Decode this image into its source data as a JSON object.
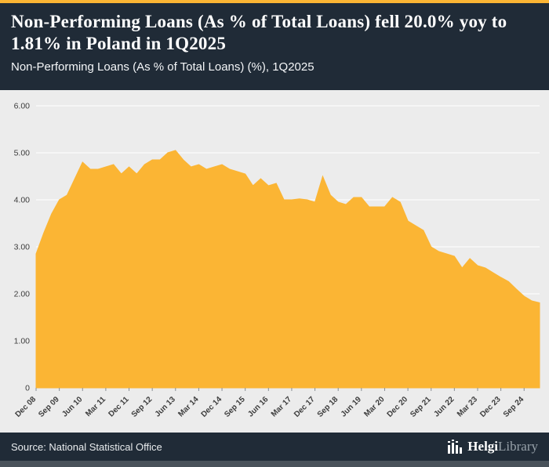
{
  "header": {
    "title": "Non-Performing Loans (As % of Total Loans) fell 20.0% yoy to 1.81% in Poland in 1Q2025",
    "subtitle": "Non-Performing Loans (As % of Total Loans) (%), 1Q2025"
  },
  "footer": {
    "source": "Source: National Statistical Office",
    "logo_primary": "Helgi",
    "logo_secondary": "Library"
  },
  "colors": {
    "accent": "#FBB534",
    "header_bg": "#202B37",
    "chart_bg": "#ECECEC",
    "gridline": "#FFFFFF",
    "axis_text": "#3d3d3d"
  },
  "chart_data": {
    "type": "area",
    "title": "Non-Performing Loans (As % of Total Loans) fell 20.0% yoy to 1.81% in Poland in 1Q2025",
    "subtitle": "Non-Performing Loans (As % of Total Loans) (%), 1Q2025",
    "unit": "%",
    "ylim": [
      0,
      6
    ],
    "ytick_labels": [
      "6.00",
      "5.00",
      "4.00",
      "3.00",
      "2.00",
      "1.00",
      "0"
    ],
    "grid": true,
    "legend": "none",
    "x_tick_every": 3,
    "x_tick_labels": [
      "Dec 08",
      "Sep 09",
      "Jun 10",
      "Mar 11",
      "Dec 11",
      "Sep 12",
      "Jun 13",
      "Mar 14",
      "Dec 14",
      "Sep 15",
      "Jun 16",
      "Mar 17",
      "Dec 17",
      "Sep 18",
      "Jun 19",
      "Mar 20",
      "Dec 20",
      "Sep 21",
      "Jun 22",
      "Mar 23",
      "Dec 23",
      "Sep 24"
    ],
    "categories": [
      "Dec 08",
      "Mar 09",
      "Jun 09",
      "Sep 09",
      "Dec 09",
      "Mar 10",
      "Jun 10",
      "Sep 10",
      "Dec 10",
      "Mar 11",
      "Jun 11",
      "Sep 11",
      "Dec 11",
      "Mar 12",
      "Jun 12",
      "Sep 12",
      "Dec 12",
      "Mar 13",
      "Jun 13",
      "Sep 13",
      "Dec 13",
      "Mar 14",
      "Jun 14",
      "Sep 14",
      "Dec 14",
      "Mar 15",
      "Jun 15",
      "Sep 15",
      "Dec 15",
      "Mar 16",
      "Jun 16",
      "Sep 16",
      "Dec 16",
      "Mar 17",
      "Jun 17",
      "Sep 17",
      "Dec 17",
      "Mar 18",
      "Jun 18",
      "Sep 18",
      "Dec 18",
      "Mar 19",
      "Jun 19",
      "Sep 19",
      "Dec 19",
      "Mar 20",
      "Jun 20",
      "Sep 20",
      "Dec 20",
      "Mar 21",
      "Jun 21",
      "Sep 21",
      "Dec 21",
      "Mar 22",
      "Jun 22",
      "Sep 22",
      "Dec 22",
      "Mar 23",
      "Jun 23",
      "Sep 23",
      "Dec 23",
      "Mar 24",
      "Jun 24",
      "Sep 24",
      "Dec 24",
      "Mar 25"
    ],
    "values": [
      2.85,
      3.3,
      3.7,
      4.0,
      4.1,
      4.45,
      4.8,
      4.65,
      4.65,
      4.7,
      4.75,
      4.55,
      4.7,
      4.55,
      4.75,
      4.85,
      4.85,
      5.0,
      5.05,
      4.85,
      4.7,
      4.75,
      4.65,
      4.7,
      4.75,
      4.65,
      4.6,
      4.55,
      4.3,
      4.45,
      4.3,
      4.35,
      4.0,
      4.0,
      4.02,
      4.0,
      3.95,
      4.5,
      4.1,
      3.95,
      3.9,
      4.05,
      4.05,
      3.85,
      3.85,
      3.85,
      4.05,
      3.95,
      3.55,
      3.45,
      3.35,
      3.0,
      2.9,
      2.85,
      2.8,
      2.55,
      2.75,
      2.6,
      2.55,
      2.45,
      2.35,
      2.26,
      2.1,
      1.95,
      1.85,
      1.81
    ]
  }
}
